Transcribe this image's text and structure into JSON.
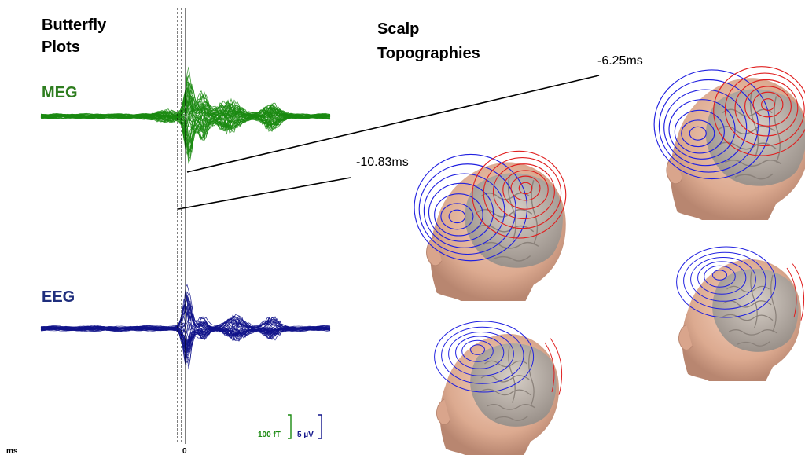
{
  "headings": {
    "butterfly_line1": "Butterfly",
    "butterfly_line2": "Plots",
    "scalp_line1": "Scalp",
    "scalp_line2": "Topographies"
  },
  "channels": {
    "meg": {
      "label": "MEG",
      "color": "#2e7d1f",
      "wave_color": "#1a8a10",
      "scale": "100 fT"
    },
    "eeg": {
      "label": "EEG",
      "color": "#1f2e7d",
      "wave_color": "#10138a",
      "scale": "5 µV"
    }
  },
  "time_axis": {
    "unit": "ms",
    "zero_label": "0"
  },
  "annotations": {
    "t1": "-6.25ms",
    "t2": "-10.83ms"
  },
  "colors": {
    "positive_contour": "#e02020",
    "negative_contour": "#2020e0",
    "scalp": "#e8b8a0",
    "brain": "#b8aea4"
  },
  "icons": {
    "head": "head-with-brain-icon"
  }
}
